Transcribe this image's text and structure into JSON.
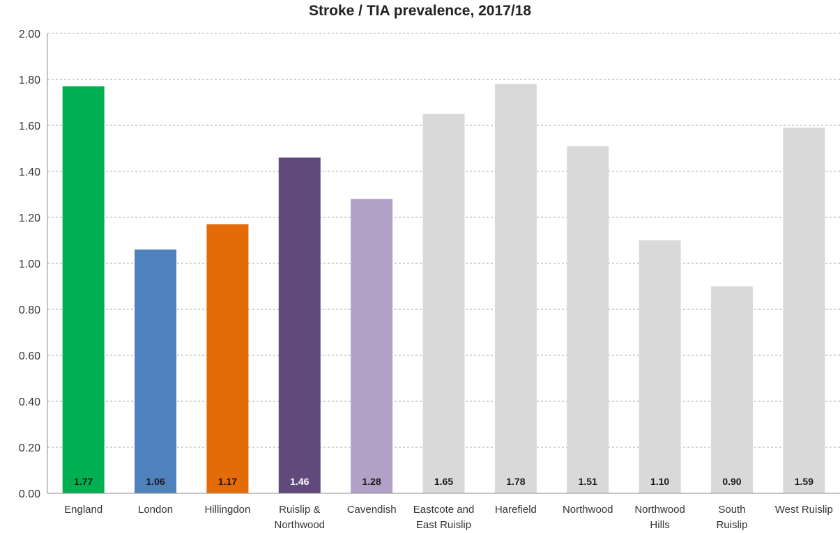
{
  "chart_data": {
    "type": "bar",
    "title": "Stroke / TIA prevalence, 2017/18",
    "xlabel": "",
    "ylabel": "",
    "ylim": [
      0,
      2.0
    ],
    "yticks": [
      "0.00",
      "0.20",
      "0.40",
      "0.60",
      "0.80",
      "1.00",
      "1.20",
      "1.40",
      "1.60",
      "1.80",
      "2.00"
    ],
    "grid": true,
    "categories": [
      [
        "England"
      ],
      [
        "London"
      ],
      [
        "Hillingdon"
      ],
      [
        "Ruislip &",
        "Northwood"
      ],
      [
        "Cavendish"
      ],
      [
        "Eastcote and",
        "East Ruislip"
      ],
      [
        "Harefield"
      ],
      [
        "Northwood"
      ],
      [
        "Northwood",
        "Hills"
      ],
      [
        "South",
        "Ruislip"
      ],
      [
        "West Ruislip"
      ]
    ],
    "values": [
      1.77,
      1.06,
      1.17,
      1.46,
      1.28,
      1.65,
      1.78,
      1.51,
      1.1,
      0.9,
      1.59
    ],
    "data_labels": [
      "1.77",
      "1.06",
      "1.17",
      "1.46",
      "1.28",
      "1.65",
      "1.78",
      "1.51",
      "1.10",
      "0.90",
      "1.59"
    ],
    "colors": [
      "#00b050",
      "#4f81bd",
      "#e36c09",
      "#604a7b",
      "#b2a1c7",
      "#d9d9d9",
      "#d9d9d9",
      "#d9d9d9",
      "#d9d9d9",
      "#d9d9d9",
      "#d9d9d9"
    ],
    "label_colors": [
      "#1a1a1a",
      "#1a1a1a",
      "#1a1a1a",
      "#ffffff",
      "#1a1a1a",
      "#1a1a1a",
      "#1a1a1a",
      "#1a1a1a",
      "#1a1a1a",
      "#1a1a1a",
      "#1a1a1a"
    ]
  }
}
